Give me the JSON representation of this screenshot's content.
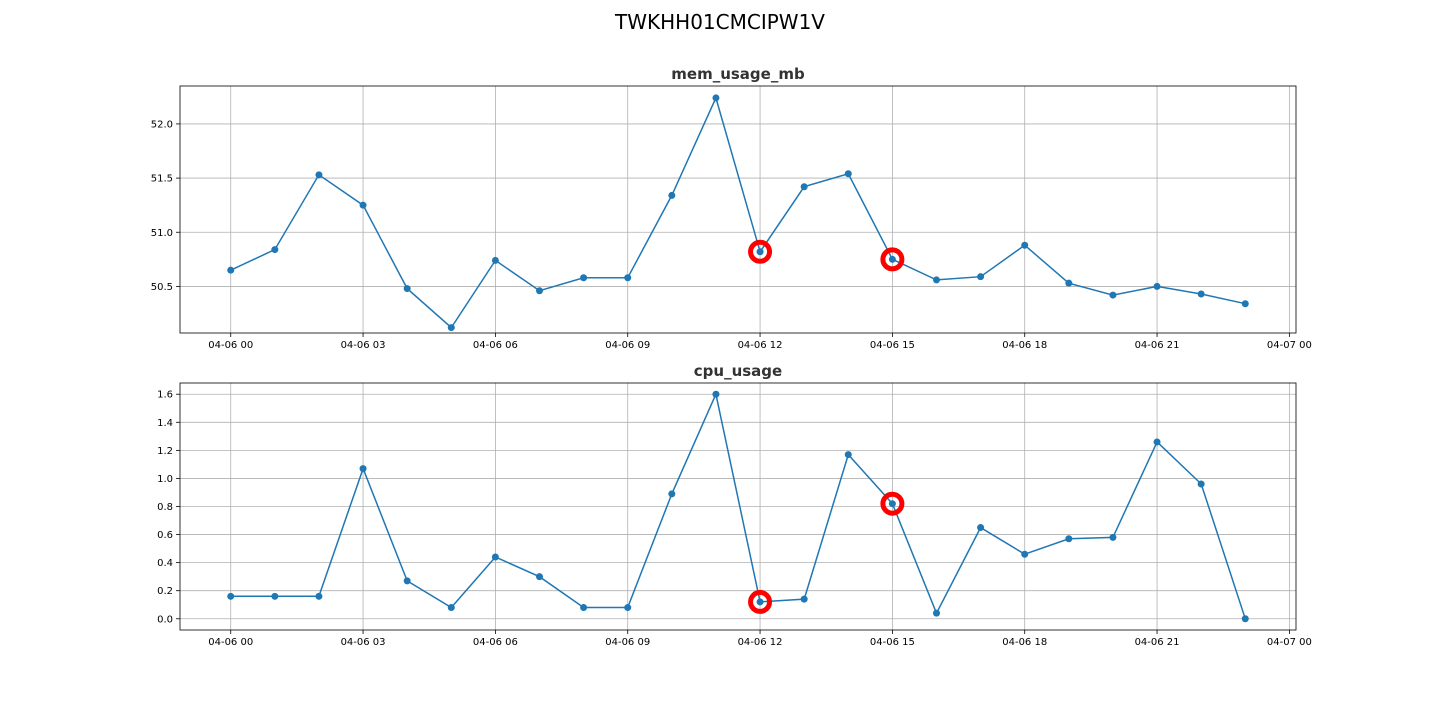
{
  "figure": {
    "title": "TWKHH01CMCIPW1V"
  },
  "chart_data": [
    {
      "type": "line",
      "title": "mem_usage_mb",
      "xlabel": "",
      "ylabel": "",
      "x": [
        "04-06 00:00",
        "04-06 01:00",
        "04-06 02:00",
        "04-06 03:00",
        "04-06 04:00",
        "04-06 05:00",
        "04-06 06:00",
        "04-06 07:00",
        "04-06 08:00",
        "04-06 09:00",
        "04-06 10:00",
        "04-06 11:00",
        "04-06 12:00",
        "04-06 13:00",
        "04-06 14:00",
        "04-06 15:00",
        "04-06 16:00",
        "04-06 17:00",
        "04-06 18:00",
        "04-06 19:00",
        "04-06 20:00",
        "04-06 21:00",
        "04-06 22:00",
        "04-06 23:00"
      ],
      "values": [
        50.65,
        50.84,
        51.53,
        51.25,
        50.48,
        50.12,
        50.74,
        50.46,
        50.58,
        50.58,
        51.34,
        52.24,
        50.82,
        51.42,
        51.54,
        50.75,
        50.56,
        50.59,
        50.88,
        50.53,
        50.42,
        50.5,
        50.43,
        50.34
      ],
      "anomalies": [
        "04-06 12:00",
        "04-06 15:00"
      ],
      "xticks": [
        "04-06 00",
        "04-06 03",
        "04-06 06",
        "04-06 09",
        "04-06 12",
        "04-06 15",
        "04-06 18",
        "04-06 21",
        "04-07 00"
      ],
      "yticks": [
        "50.5",
        "51.0",
        "51.5",
        "52.0"
      ],
      "ylim": [
        50.07,
        52.35
      ],
      "grid": true,
      "line_color": "#1f77b4",
      "anomaly_color": "#ff0000"
    },
    {
      "type": "line",
      "title": "cpu_usage",
      "xlabel": "",
      "ylabel": "",
      "x": [
        "04-06 00:00",
        "04-06 01:00",
        "04-06 02:00",
        "04-06 03:00",
        "04-06 04:00",
        "04-06 05:00",
        "04-06 06:00",
        "04-06 07:00",
        "04-06 08:00",
        "04-06 09:00",
        "04-06 10:00",
        "04-06 11:00",
        "04-06 12:00",
        "04-06 13:00",
        "04-06 14:00",
        "04-06 15:00",
        "04-06 16:00",
        "04-06 17:00",
        "04-06 18:00",
        "04-06 19:00",
        "04-06 20:00",
        "04-06 21:00",
        "04-06 22:00",
        "04-06 23:00"
      ],
      "values": [
        0.16,
        0.16,
        0.16,
        1.07,
        0.27,
        0.08,
        0.44,
        0.3,
        0.08,
        0.08,
        0.89,
        1.6,
        0.12,
        0.14,
        1.17,
        0.82,
        0.04,
        0.65,
        0.46,
        0.57,
        0.58,
        1.26,
        0.96,
        0.0
      ],
      "anomalies": [
        "04-06 12:00",
        "04-06 15:00"
      ],
      "xticks": [
        "04-06 00",
        "04-06 03",
        "04-06 06",
        "04-06 09",
        "04-06 12",
        "04-06 15",
        "04-06 18",
        "04-06 21",
        "04-07 00"
      ],
      "yticks": [
        "0.0",
        "0.2",
        "0.4",
        "0.6",
        "0.8",
        "1.0",
        "1.2",
        "1.4",
        "1.6"
      ],
      "ylim": [
        -0.08,
        1.68
      ],
      "grid": true,
      "line_color": "#1f77b4",
      "anomaly_color": "#ff0000"
    }
  ]
}
